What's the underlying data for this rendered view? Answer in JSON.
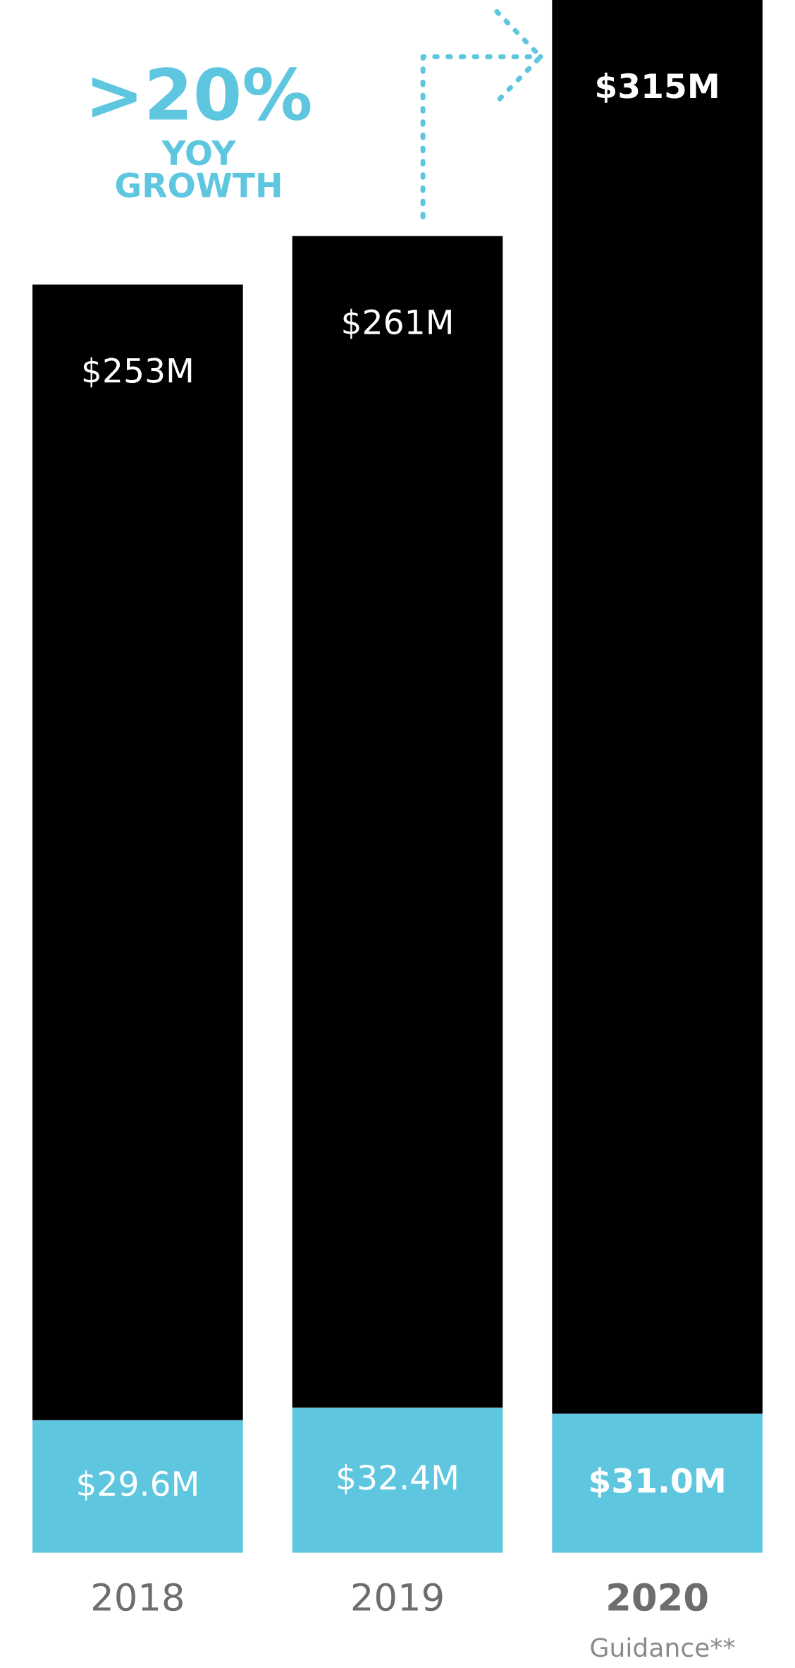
{
  "chart_data": {
    "type": "bar",
    "stacked": true,
    "tick_labels": "x",
    "grid": false,
    "categories": [
      "2018",
      "2019",
      "2020"
    ],
    "series": [
      {
        "color": "#5ec7df",
        "values": [
          29.6,
          32.4,
          31.0
        ],
        "value_labels": [
          "$29.6M",
          "$32.4M",
          "$31.0M"
        ]
      },
      {
        "color": "#000000",
        "values": [
          253,
          261,
          315
        ],
        "value_labels": [
          "$253M",
          "$261M",
          "$315M"
        ]
      }
    ],
    "annotations": [
      ">20%",
      "YOY GROWTH",
      "Guidance**"
    ]
  }
}
